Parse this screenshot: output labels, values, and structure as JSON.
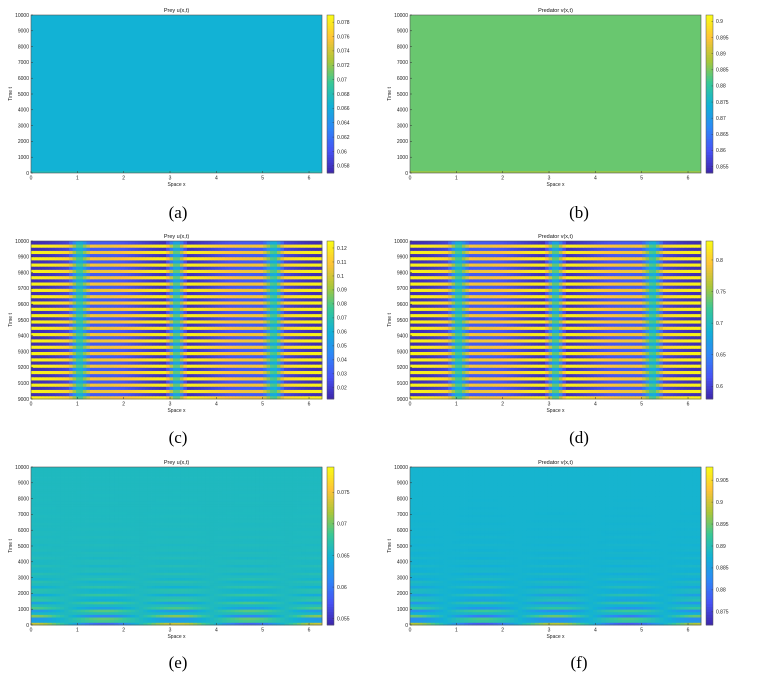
{
  "chart_data": [
    {
      "id": "a",
      "type": "heatmap",
      "title": "Prey u(x,t)",
      "xlabel": "Space x",
      "ylabel": "Time t",
      "xlim": [
        0,
        6.28
      ],
      "ylim": [
        0,
        10000
      ],
      "xticks": [
        "0",
        "1",
        "2",
        "3",
        "4",
        "5",
        "6"
      ],
      "yticks": [
        "0",
        "1000",
        "2000",
        "3000",
        "4000",
        "5000",
        "6000",
        "7000",
        "8000",
        "9000",
        "10000"
      ],
      "ytick_values": [
        0,
        1000,
        2000,
        3000,
        4000,
        5000,
        6000,
        7000,
        8000,
        9000,
        10000
      ],
      "colorbar_ticks": [
        "0.058",
        "0.06",
        "0.062",
        "0.064",
        "0.066",
        "0.068",
        "0.07",
        "0.072",
        "0.074",
        "0.076",
        "0.078"
      ],
      "clim": [
        0.057,
        0.079
      ],
      "pattern": "uniform",
      "steady_value": 0.0665,
      "caption": "(a)"
    },
    {
      "id": "b",
      "type": "heatmap",
      "title": "Predator v(x,t)",
      "xlabel": "Space x",
      "ylabel": "Time t",
      "xlim": [
        0,
        6.28
      ],
      "ylim": [
        0,
        10000
      ],
      "xticks": [
        "0",
        "1",
        "2",
        "3",
        "4",
        "5",
        "6"
      ],
      "yticks": [
        "0",
        "1000",
        "2000",
        "3000",
        "4000",
        "5000",
        "6000",
        "7000",
        "8000",
        "9000",
        "10000"
      ],
      "ytick_values": [
        0,
        1000,
        2000,
        3000,
        4000,
        5000,
        6000,
        7000,
        8000,
        9000,
        10000
      ],
      "colorbar_ticks": [
        "0.855",
        "0.86",
        "0.865",
        "0.87",
        "0.875",
        "0.88",
        "0.885",
        "0.89",
        "0.895",
        "0.9"
      ],
      "clim": [
        0.853,
        0.902
      ],
      "pattern": "uniform",
      "steady_value": 0.884,
      "caption": "(b)"
    },
    {
      "id": "c",
      "type": "heatmap",
      "title": "Prey u(x,t)",
      "xlabel": "Space x",
      "ylabel": "Time t",
      "xlim": [
        0,
        6.28
      ],
      "ylim": [
        9000,
        10000
      ],
      "xticks": [
        "0",
        "1",
        "2",
        "3",
        "4",
        "5",
        "6"
      ],
      "yticks": [
        "9000",
        "9100",
        "9200",
        "9300",
        "9400",
        "9500",
        "9600",
        "9700",
        "9800",
        "9900",
        "10000"
      ],
      "ytick_values": [
        9000,
        9100,
        9200,
        9300,
        9400,
        9500,
        9600,
        9700,
        9800,
        9900,
        10000
      ],
      "colorbar_ticks": [
        "0.02",
        "0.03",
        "0.04",
        "0.05",
        "0.06",
        "0.07",
        "0.08",
        "0.09",
        "0.1",
        "0.11",
        "0.12"
      ],
      "clim": [
        0.012,
        0.125
      ],
      "pattern": "oscillating",
      "period": 40,
      "node_positions": [
        1.05,
        3.14,
        5.24
      ],
      "caption": "(c)"
    },
    {
      "id": "d",
      "type": "heatmap",
      "title": "Predator v(x,t)",
      "xlabel": "Space x",
      "ylabel": "Time t",
      "xlim": [
        0,
        6.28
      ],
      "ylim": [
        9000,
        10000
      ],
      "xticks": [
        "0",
        "1",
        "2",
        "3",
        "4",
        "5",
        "6"
      ],
      "yticks": [
        "9000",
        "9100",
        "9200",
        "9300",
        "9400",
        "9500",
        "9600",
        "9700",
        "9800",
        "9900",
        "10000"
      ],
      "ytick_values": [
        9000,
        9100,
        9200,
        9300,
        9400,
        9500,
        9600,
        9700,
        9800,
        9900,
        10000
      ],
      "colorbar_ticks": [
        "0.6",
        "0.65",
        "0.7",
        "0.75",
        "0.8"
      ],
      "clim": [
        0.58,
        0.83
      ],
      "pattern": "oscillating",
      "period": 40,
      "node_positions": [
        1.05,
        3.14,
        5.24
      ],
      "caption": "(d)"
    },
    {
      "id": "e",
      "type": "heatmap",
      "title": "Prey u(x,t)",
      "xlabel": "Space x",
      "ylabel": "Time t",
      "xlim": [
        0,
        6.28
      ],
      "ylim": [
        0,
        10000
      ],
      "xticks": [
        "0",
        "1",
        "2",
        "3",
        "4",
        "5",
        "6"
      ],
      "yticks": [
        "0",
        "1000",
        "2000",
        "3000",
        "4000",
        "5000",
        "6000",
        "7000",
        "8000",
        "9000",
        "10000"
      ],
      "ytick_values": [
        0,
        1000,
        2000,
        3000,
        4000,
        5000,
        6000,
        7000,
        8000,
        9000,
        10000
      ],
      "colorbar_ticks": [
        "0.055",
        "0.06",
        "0.065",
        "0.07",
        "0.075"
      ],
      "clim": [
        0.054,
        0.079
      ],
      "pattern": "decaying",
      "steady_value": 0.066,
      "caption": "(e)"
    },
    {
      "id": "f",
      "type": "heatmap",
      "title": "Predator v(x,t)",
      "xlabel": "Space x",
      "ylabel": "Time t",
      "xlim": [
        0,
        6.28
      ],
      "ylim": [
        0,
        10000
      ],
      "xticks": [
        "0",
        "1",
        "2",
        "3",
        "4",
        "5",
        "6"
      ],
      "yticks": [
        "0",
        "1000",
        "2000",
        "3000",
        "4000",
        "5000",
        "6000",
        "7000",
        "8000",
        "9000",
        "10000"
      ],
      "ytick_values": [
        0,
        1000,
        2000,
        3000,
        4000,
        5000,
        6000,
        7000,
        8000,
        9000,
        10000
      ],
      "colorbar_ticks": [
        "0.875",
        "0.88",
        "0.885",
        "0.89",
        "0.895",
        "0.9",
        "0.905"
      ],
      "clim": [
        0.872,
        0.908
      ],
      "pattern": "decaying",
      "steady_value": 0.888,
      "caption": "(f)"
    }
  ]
}
